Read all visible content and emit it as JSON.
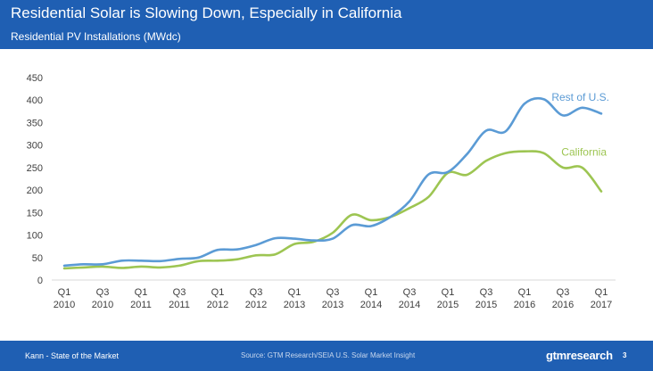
{
  "header": {
    "title": "Residential Solar is Slowing Down, Especially in California",
    "subtitle": "Residential PV Installations (MWdc)"
  },
  "footer": {
    "left_text": "Kann - State of the Market",
    "source": "Source: GTM Research/SEIA U.S. Solar Market Insight",
    "brand": "gtmresearch",
    "page": "3"
  },
  "colors": {
    "header_bg": "#1f5fb3",
    "rest_of_us": "#5b9bd5",
    "california": "#9dc552"
  },
  "chart_data": {
    "type": "line",
    "title": "Residential Solar is Slowing Down, Especially in California",
    "ylabel": "Residential PV Installations (MWdc)",
    "ylim": [
      0,
      450
    ],
    "yticks": [
      0,
      50,
      100,
      150,
      200,
      250,
      300,
      350,
      400,
      450
    ],
    "grid": false,
    "x": [
      "Q1 2010",
      "Q2 2010",
      "Q3 2010",
      "Q4 2010",
      "Q1 2011",
      "Q2 2011",
      "Q3 2011",
      "Q4 2011",
      "Q1 2012",
      "Q2 2012",
      "Q3 2012",
      "Q4 2012",
      "Q1 2013",
      "Q2 2013",
      "Q3 2013",
      "Q4 2013",
      "Q1 2014",
      "Q2 2014",
      "Q3 2014",
      "Q4 2014",
      "Q1 2015",
      "Q2 2015",
      "Q3 2015",
      "Q4 2015",
      "Q1 2016",
      "Q2 2016",
      "Q3 2016",
      "Q4 2016",
      "Q1 2017"
    ],
    "xtick_labels": [
      {
        "quarter": "Q1",
        "year": "2010"
      },
      {
        "quarter": "Q3",
        "year": "2010"
      },
      {
        "quarter": "Q1",
        "year": "2011"
      },
      {
        "quarter": "Q3",
        "year": "2011"
      },
      {
        "quarter": "Q1",
        "year": "2012"
      },
      {
        "quarter": "Q3",
        "year": "2012"
      },
      {
        "quarter": "Q1",
        "year": "2013"
      },
      {
        "quarter": "Q3",
        "year": "2013"
      },
      {
        "quarter": "Q1",
        "year": "2014"
      },
      {
        "quarter": "Q3",
        "year": "2014"
      },
      {
        "quarter": "Q1",
        "year": "2015"
      },
      {
        "quarter": "Q3",
        "year": "2015"
      },
      {
        "quarter": "Q1",
        "year": "2016"
      },
      {
        "quarter": "Q3",
        "year": "2016"
      },
      {
        "quarter": "Q1",
        "year": "2017"
      }
    ],
    "series": [
      {
        "name": "Rest of U.S.",
        "color": "#5b9bd5",
        "values": [
          32,
          35,
          35,
          43,
          43,
          42,
          47,
          50,
          67,
          68,
          78,
          93,
          92,
          88,
          92,
          122,
          120,
          140,
          175,
          235,
          240,
          280,
          332,
          330,
          392,
          402,
          366,
          383,
          370
        ]
      },
      {
        "name": "California",
        "color": "#9dc552",
        "values": [
          26,
          28,
          30,
          27,
          30,
          28,
          32,
          42,
          43,
          46,
          55,
          57,
          80,
          85,
          105,
          145,
          133,
          140,
          160,
          185,
          238,
          234,
          265,
          282,
          286,
          282,
          250,
          250,
          197
        ]
      }
    ]
  }
}
